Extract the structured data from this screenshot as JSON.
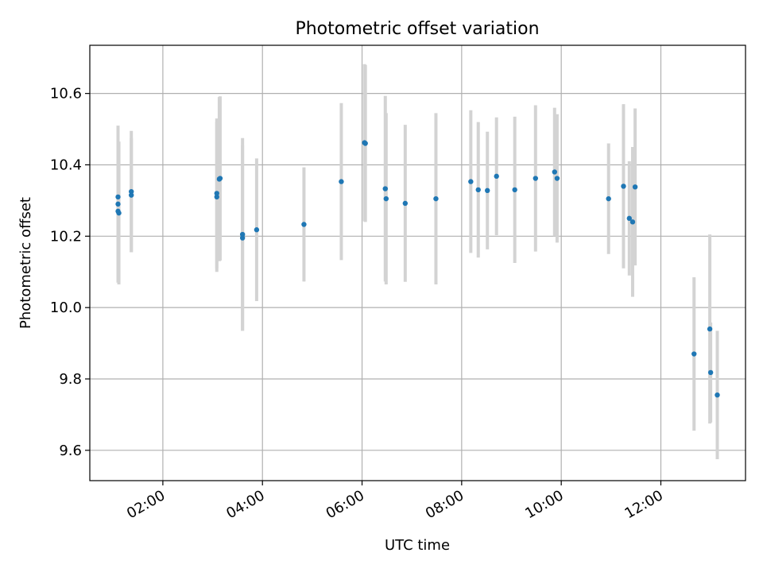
{
  "chart_data": {
    "type": "scatter",
    "title": "Photometric offset variation",
    "xlabel": "UTC time",
    "ylabel": "Photometric offset",
    "xlim": [
      "00:32",
      "13:42"
    ],
    "ylim": [
      9.515,
      10.735
    ],
    "x_ticks": [
      "02:00",
      "04:00",
      "06:00",
      "08:00",
      "10:00",
      "12:00"
    ],
    "y_ticks": [
      "9.6",
      "9.8",
      "10.0",
      "10.2",
      "10.4",
      "10.6"
    ],
    "grid": true,
    "legend": "none",
    "colors": {
      "points": "#1f77b4",
      "errorbars": "#d3d3d3",
      "grid": "#b0b0b0"
    },
    "points": [
      {
        "x": "01:06",
        "y": 10.31,
        "err": 0.2
      },
      {
        "x": "01:06",
        "y": 10.29,
        "err": 0.19
      },
      {
        "x": "01:06",
        "y": 10.27,
        "err": 0.2
      },
      {
        "x": "01:07",
        "y": 10.265,
        "err": 0.2
      },
      {
        "x": "01:22",
        "y": 10.325,
        "err": 0.17
      },
      {
        "x": "01:22",
        "y": 10.315,
        "err": 0.16
      },
      {
        "x": "03:05",
        "y": 10.32,
        "err": 0.21
      },
      {
        "x": "03:05",
        "y": 10.31,
        "err": 0.21
      },
      {
        "x": "03:08",
        "y": 10.36,
        "err": 0.23
      },
      {
        "x": "03:09",
        "y": 10.362,
        "err": 0.23
      },
      {
        "x": "03:36",
        "y": 10.205,
        "err": 0.27
      },
      {
        "x": "03:36",
        "y": 10.195,
        "err": 0.26
      },
      {
        "x": "03:53",
        "y": 10.218,
        "err": 0.2
      },
      {
        "x": "04:50",
        "y": 10.233,
        "err": 0.16
      },
      {
        "x": "05:35",
        "y": 10.353,
        "err": 0.22
      },
      {
        "x": "06:03",
        "y": 10.462,
        "err": 0.22
      },
      {
        "x": "06:04",
        "y": 10.46,
        "err": 0.22
      },
      {
        "x": "06:28",
        "y": 10.333,
        "err": 0.26
      },
      {
        "x": "06:29",
        "y": 10.305,
        "err": 0.24
      },
      {
        "x": "06:52",
        "y": 10.292,
        "err": 0.22
      },
      {
        "x": "07:29",
        "y": 10.305,
        "err": 0.24
      },
      {
        "x": "08:11",
        "y": 10.353,
        "err": 0.2
      },
      {
        "x": "08:20",
        "y": 10.33,
        "err": 0.19
      },
      {
        "x": "08:31",
        "y": 10.328,
        "err": 0.165
      },
      {
        "x": "08:42",
        "y": 10.368,
        "err": 0.165
      },
      {
        "x": "09:04",
        "y": 10.33,
        "err": 0.205
      },
      {
        "x": "09:29",
        "y": 10.362,
        "err": 0.205
      },
      {
        "x": "09:52",
        "y": 10.38,
        "err": 0.18
      },
      {
        "x": "09:55",
        "y": 10.362,
        "err": 0.18
      },
      {
        "x": "10:57",
        "y": 10.305,
        "err": 0.155
      },
      {
        "x": "11:15",
        "y": 10.34,
        "err": 0.23
      },
      {
        "x": "11:22",
        "y": 10.25,
        "err": 0.16
      },
      {
        "x": "11:26",
        "y": 10.24,
        "err": 0.21
      },
      {
        "x": "11:29",
        "y": 10.338,
        "err": 0.22
      },
      {
        "x": "12:40",
        "y": 9.87,
        "err": 0.215
      },
      {
        "x": "12:59",
        "y": 9.94,
        "err": 0.265
      },
      {
        "x": "13:00",
        "y": 9.818,
        "err": 0.14
      },
      {
        "x": "13:08",
        "y": 9.755,
        "err": 0.18
      }
    ]
  }
}
